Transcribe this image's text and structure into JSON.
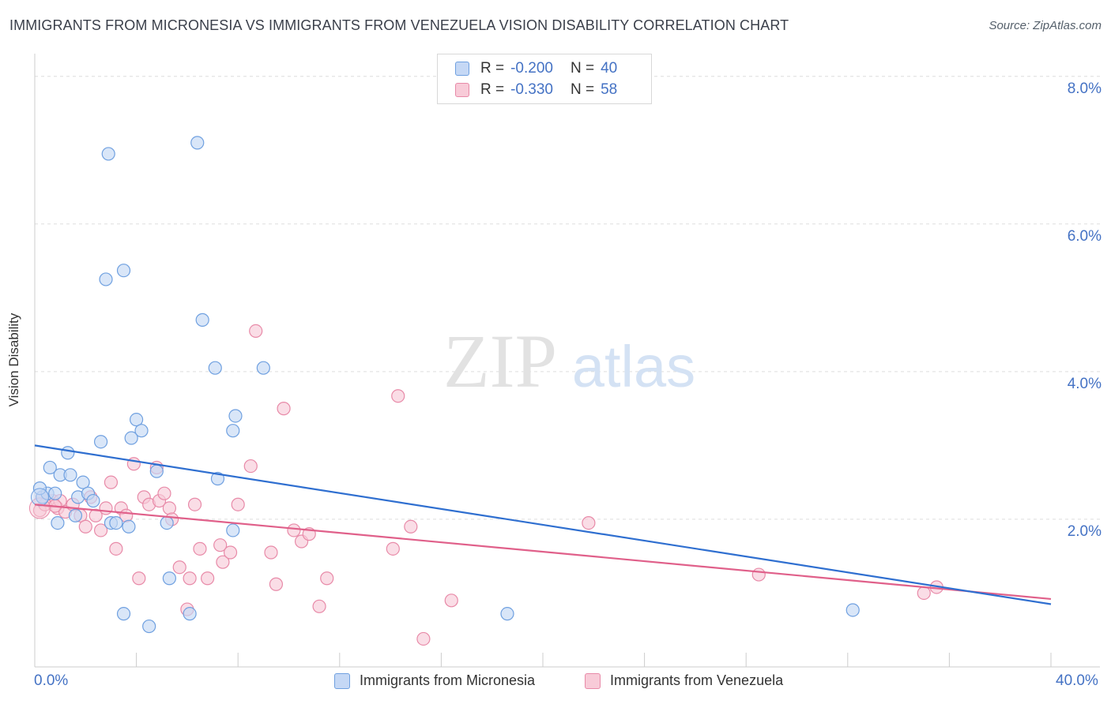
{
  "title": "IMMIGRANTS FROM MICRONESIA VS IMMIGRANTS FROM VENEZUELA VISION DISABILITY CORRELATION CHART",
  "source": "Source: ZipAtlas.com",
  "watermark": {
    "zip": "ZIP",
    "atlas": "atlas"
  },
  "colors": {
    "micronesia": "#6fa0e0",
    "micronesia_fill": "#c5d8f5",
    "micronesia_line": "#2f6fd0",
    "venezuela": "#e88aa8",
    "venezuela_fill": "#f8cbd8",
    "venezuela_line": "#e0608a",
    "axis_text": "#4472c4"
  },
  "legend": {
    "micronesia": {
      "r_label": "R =",
      "r_value": "-0.200",
      "n_label": "N =",
      "n_value": "40"
    },
    "venezuela": {
      "r_label": "R =",
      "r_value": "-0.330",
      "n_label": "N =",
      "n_value": "58"
    }
  },
  "chart_data": {
    "type": "scatter",
    "ylabel": "Vision Disability",
    "xlim": [
      0,
      40
    ],
    "ylim": [
      0,
      8.2
    ],
    "y_ticks": [
      "8.0%",
      "6.0%",
      "4.0%",
      "2.0%"
    ],
    "y_tick_values": [
      8,
      6,
      4,
      2
    ],
    "x_tick_labels": [
      "0.0%",
      "40.0%"
    ],
    "series": [
      {
        "name": "Immigrants from Micronesia",
        "trend": {
          "x": [
            0,
            40
          ],
          "y": [
            3.0,
            0.85
          ]
        },
        "points": [
          [
            0.3,
            2.3
          ],
          [
            0.5,
            2.35
          ],
          [
            0.6,
            2.7
          ],
          [
            0.8,
            2.35
          ],
          [
            0.9,
            1.95
          ],
          [
            1.0,
            2.6
          ],
          [
            1.3,
            2.9
          ],
          [
            1.4,
            2.6
          ],
          [
            1.6,
            2.05
          ],
          [
            1.7,
            2.3
          ],
          [
            1.9,
            2.5
          ],
          [
            2.1,
            2.35
          ],
          [
            2.3,
            2.25
          ],
          [
            2.6,
            3.05
          ],
          [
            2.8,
            5.25
          ],
          [
            2.9,
            6.95
          ],
          [
            3.0,
            1.95
          ],
          [
            3.2,
            1.95
          ],
          [
            3.5,
            5.37
          ],
          [
            3.5,
            0.72
          ],
          [
            3.7,
            1.9
          ],
          [
            3.8,
            3.1
          ],
          [
            4.0,
            3.35
          ],
          [
            4.2,
            3.2
          ],
          [
            4.5,
            0.55
          ],
          [
            4.8,
            2.65
          ],
          [
            5.2,
            1.95
          ],
          [
            5.3,
            1.2
          ],
          [
            6.1,
            0.72
          ],
          [
            6.4,
            7.1
          ],
          [
            6.6,
            4.7
          ],
          [
            7.1,
            4.05
          ],
          [
            7.2,
            2.55
          ],
          [
            7.8,
            1.85
          ],
          [
            7.8,
            3.2
          ],
          [
            7.9,
            3.4
          ],
          [
            9.0,
            4.05
          ],
          [
            18.6,
            0.72
          ],
          [
            32.2,
            0.77
          ],
          [
            0.2,
            2.42
          ]
        ]
      },
      {
        "name": "Immigrants from Venezuela",
        "trend": {
          "x": [
            0,
            40
          ],
          "y": [
            2.2,
            0.92
          ]
        },
        "points": [
          [
            0.2,
            2.12
          ],
          [
            0.3,
            2.3
          ],
          [
            0.5,
            2.25
          ],
          [
            0.7,
            2.25
          ],
          [
            0.9,
            2.15
          ],
          [
            1.0,
            2.25
          ],
          [
            1.2,
            2.1
          ],
          [
            1.5,
            2.2
          ],
          [
            1.8,
            2.05
          ],
          [
            2.0,
            1.9
          ],
          [
            2.2,
            2.3
          ],
          [
            2.4,
            2.05
          ],
          [
            2.6,
            1.85
          ],
          [
            2.8,
            2.15
          ],
          [
            3.0,
            2.5
          ],
          [
            3.2,
            1.6
          ],
          [
            3.4,
            2.15
          ],
          [
            3.6,
            2.05
          ],
          [
            3.9,
            2.75
          ],
          [
            4.1,
            1.2
          ],
          [
            4.3,
            2.3
          ],
          [
            4.5,
            2.2
          ],
          [
            4.8,
            2.7
          ],
          [
            4.9,
            2.25
          ],
          [
            5.1,
            2.35
          ],
          [
            5.3,
            2.15
          ],
          [
            5.4,
            2.0
          ],
          [
            5.7,
            1.35
          ],
          [
            6.0,
            0.78
          ],
          [
            6.1,
            1.2
          ],
          [
            6.3,
            2.2
          ],
          [
            6.5,
            1.6
          ],
          [
            6.8,
            1.2
          ],
          [
            7.3,
            1.65
          ],
          [
            7.4,
            1.42
          ],
          [
            7.7,
            1.55
          ],
          [
            8.0,
            2.2
          ],
          [
            8.5,
            2.72
          ],
          [
            8.7,
            4.55
          ],
          [
            9.3,
            1.55
          ],
          [
            9.5,
            1.12
          ],
          [
            9.8,
            3.5
          ],
          [
            10.2,
            1.85
          ],
          [
            10.5,
            1.7
          ],
          [
            10.8,
            1.8
          ],
          [
            11.2,
            0.82
          ],
          [
            11.5,
            1.2
          ],
          [
            14.1,
            1.6
          ],
          [
            14.3,
            3.67
          ],
          [
            14.8,
            1.9
          ],
          [
            15.3,
            0.38
          ],
          [
            16.4,
            0.9
          ],
          [
            21.8,
            1.95
          ],
          [
            28.5,
            1.25
          ],
          [
            35.0,
            1.0
          ],
          [
            35.5,
            1.08
          ],
          [
            0.4,
            2.2
          ],
          [
            0.8,
            2.18
          ]
        ]
      }
    ]
  }
}
